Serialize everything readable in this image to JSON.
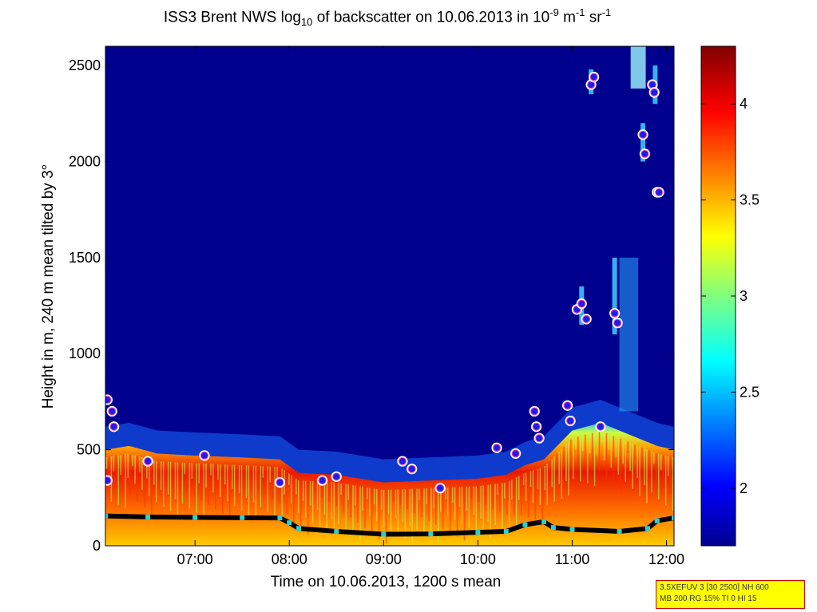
{
  "chart_data": {
    "type": "heatmap",
    "title": {
      "prefix": "ISS3 Brent NWS log",
      "log_base": "10",
      "middle": " of backscatter on 10.06.2013 in 10",
      "exp1": "-9",
      "unit1": " m",
      "exp2": "-1",
      "unit2": " sr",
      "exp3": "-1"
    },
    "xlabel": "Time on 10.06.2013, 1200 s mean",
    "ylabel": "Height in m, 240 m mean tilted by 3°",
    "x_range_hours": [
      6.05,
      12.08
    ],
    "y_range_m": [
      0,
      2600
    ],
    "x_ticks": [
      {
        "value": 7,
        "label": "07:00"
      },
      {
        "value": 8,
        "label": "08:00"
      },
      {
        "value": 9,
        "label": "09:00"
      },
      {
        "value": 10,
        "label": "10:00"
      },
      {
        "value": 11,
        "label": "11:00"
      },
      {
        "value": 12,
        "label": "12:00"
      }
    ],
    "y_ticks": [
      {
        "value": 0,
        "label": "0"
      },
      {
        "value": 500,
        "label": "500"
      },
      {
        "value": 1000,
        "label": "1000"
      },
      {
        "value": 1500,
        "label": "1500"
      },
      {
        "value": 2000,
        "label": "2000"
      },
      {
        "value": 2500,
        "label": "2500"
      }
    ],
    "colorbar": {
      "range": [
        1.7,
        4.3
      ],
      "colormap": "jet",
      "ticks": [
        {
          "value": 2,
          "label": "2"
        },
        {
          "value": 2.5,
          "label": "2.5"
        },
        {
          "value": 3,
          "label": "3"
        },
        {
          "value": 3.5,
          "label": "3.5"
        },
        {
          "value": 4,
          "label": "4"
        }
      ]
    },
    "colors": {
      "background_low": "#00008f",
      "marker_fill": "#1e1ee6",
      "marker_edge": "#ff3cc8",
      "marker_outline": "#ffffff",
      "layer_line": "#000000",
      "layer_marker": "#30d0d0"
    },
    "layer_top_profile": [
      [
        6.05,
        500
      ],
      [
        6.3,
        520
      ],
      [
        6.6,
        480
      ],
      [
        7.0,
        470
      ],
      [
        7.5,
        460
      ],
      [
        7.9,
        450
      ],
      [
        8.1,
        380
      ],
      [
        8.5,
        370
      ],
      [
        9.0,
        330
      ],
      [
        9.5,
        340
      ],
      [
        10.0,
        350
      ],
      [
        10.3,
        370
      ],
      [
        10.5,
        420
      ],
      [
        10.7,
        450
      ],
      [
        11.0,
        600
      ],
      [
        11.3,
        640
      ],
      [
        11.6,
        580
      ],
      [
        11.9,
        520
      ],
      [
        12.08,
        500
      ]
    ],
    "detected_layer_line": [
      [
        6.05,
        155
      ],
      [
        6.5,
        150
      ],
      [
        7.0,
        148
      ],
      [
        7.5,
        146
      ],
      [
        7.9,
        145
      ],
      [
        8.0,
        120
      ],
      [
        8.1,
        90
      ],
      [
        8.5,
        75
      ],
      [
        9.0,
        60
      ],
      [
        9.5,
        62
      ],
      [
        10.0,
        70
      ],
      [
        10.3,
        75
      ],
      [
        10.5,
        110
      ],
      [
        10.7,
        125
      ],
      [
        10.8,
        95
      ],
      [
        11.0,
        85
      ],
      [
        11.5,
        75
      ],
      [
        11.8,
        90
      ],
      [
        11.9,
        130
      ],
      [
        12.08,
        145
      ]
    ],
    "cloud_base_points": [
      [
        6.07,
        760
      ],
      [
        6.07,
        340
      ],
      [
        6.12,
        700
      ],
      [
        6.14,
        620
      ],
      [
        6.5,
        440
      ],
      [
        7.1,
        470
      ],
      [
        7.9,
        330
      ],
      [
        8.35,
        340
      ],
      [
        8.5,
        360
      ],
      [
        9.2,
        440
      ],
      [
        9.3,
        400
      ],
      [
        9.6,
        300
      ],
      [
        10.2,
        510
      ],
      [
        10.4,
        480
      ],
      [
        10.6,
        700
      ],
      [
        10.62,
        620
      ],
      [
        10.65,
        560
      ],
      [
        10.95,
        730
      ],
      [
        10.98,
        650
      ],
      [
        11.05,
        1230
      ],
      [
        11.1,
        1260
      ],
      [
        11.15,
        1180
      ],
      [
        11.2,
        2400
      ],
      [
        11.23,
        2440
      ],
      [
        11.3,
        620
      ],
      [
        11.45,
        1210
      ],
      [
        11.48,
        1160
      ],
      [
        11.75,
        2140
      ],
      [
        11.77,
        2040
      ],
      [
        11.85,
        2400
      ],
      [
        11.87,
        2360
      ],
      [
        11.9,
        1840
      ],
      [
        11.92,
        1840
      ]
    ],
    "columns_cloud_high": [
      {
        "x": 11.1,
        "y0": 1150,
        "y1": 1350
      },
      {
        "x": 11.2,
        "y0": 2350,
        "y1": 2480
      },
      {
        "x": 11.45,
        "y0": 1100,
        "y1": 1500
      },
      {
        "x": 11.75,
        "y0": 2000,
        "y1": 2200
      },
      {
        "x": 11.88,
        "y0": 2300,
        "y1": 2500
      }
    ]
  },
  "info_box": {
    "line1": "3.5XEFUV 3 [30 2500] NH 600",
    "line2": "MB 200 RG 15% TI 0 HI 15"
  }
}
